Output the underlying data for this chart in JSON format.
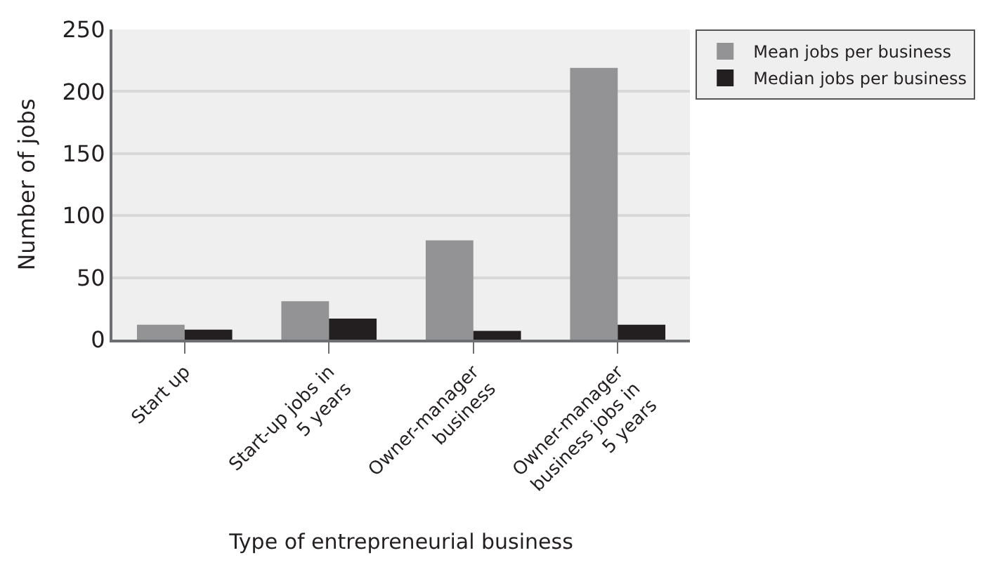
{
  "chart_data": {
    "type": "bar",
    "xlabel": "Type of entrepreneurial business",
    "ylabel": "Number of jobs",
    "categories": [
      "Start up",
      "Start-up jobs in 5 years",
      "Owner-manager business",
      "Owner-manager business jobs in 5 years"
    ],
    "series": [
      {
        "name": "Mean jobs per business",
        "color": "#939396",
        "values": [
          12,
          31,
          80,
          219
        ]
      },
      {
        "name": "Median jobs per business",
        "color": "#231f20",
        "values": [
          8,
          17,
          7,
          12
        ]
      }
    ],
    "ylim": [
      0,
      250
    ],
    "yticks": [
      0,
      50,
      100,
      150,
      200,
      250
    ],
    "grid": "y",
    "legend": "top right"
  }
}
